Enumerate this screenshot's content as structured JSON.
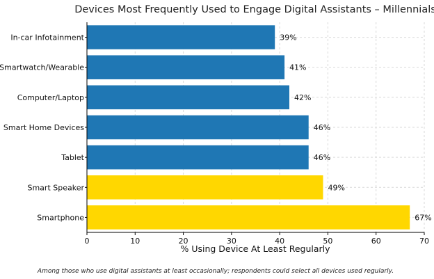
{
  "chart_data": {
    "type": "bar",
    "orientation": "horizontal",
    "title": "Devices Most Frequently Used to Engage Digital Assistants – Millennials",
    "xlabel": "% Using Device At Least Regularly",
    "ylabel": "",
    "xlim": [
      0,
      70
    ],
    "xticks": [
      0,
      10,
      20,
      30,
      40,
      50,
      60,
      70
    ],
    "grid": true,
    "categories": [
      "In-car Infotainment",
      "Smartwatch/Wearable",
      "Computer/Laptop",
      "Smart Home Devices",
      "Tablet",
      "Smart Speaker",
      "Smartphone"
    ],
    "values": [
      39,
      41,
      42,
      46,
      46,
      49,
      67
    ],
    "value_labels": [
      "39%",
      "41%",
      "42%",
      "46%",
      "46%",
      "49%",
      "67%"
    ],
    "bar_colors": [
      "#1f77b4",
      "#1f77b4",
      "#1f77b4",
      "#1f77b4",
      "#1f77b4",
      "#ffd700",
      "#ffd700"
    ],
    "note": "Among those who use digital assistants at least occasionally; respondents could select all devices used regularly."
  }
}
